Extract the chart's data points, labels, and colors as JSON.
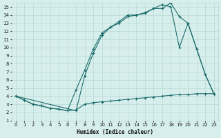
{
  "xlabel": "Humidex (Indice chaleur)",
  "background_color": "#d7efec",
  "grid_color": "#b8d8d4",
  "line_color": "#1a6b6b",
  "xlim": [
    -0.5,
    23.5
  ],
  "ylim": [
    1,
    15.5
  ],
  "xticks": [
    0,
    1,
    2,
    3,
    4,
    5,
    6,
    7,
    8,
    9,
    10,
    11,
    12,
    13,
    14,
    15,
    16,
    17,
    18,
    19,
    20,
    21,
    22,
    23
  ],
  "yticks": [
    1,
    2,
    3,
    4,
    5,
    6,
    7,
    8,
    9,
    10,
    11,
    12,
    13,
    14,
    15
  ],
  "line1_x": [
    0,
    1,
    2,
    3,
    4,
    5,
    6,
    7,
    8,
    9,
    10,
    11,
    12,
    13,
    14,
    15,
    16,
    17,
    18,
    19,
    20,
    21,
    22,
    23
  ],
  "line1_y": [
    4.0,
    3.5,
    3.0,
    2.8,
    2.5,
    2.4,
    2.2,
    2.3,
    3.0,
    3.2,
    3.3,
    3.4,
    3.5,
    3.6,
    3.7,
    3.8,
    3.9,
    4.0,
    4.1,
    4.2,
    4.2,
    4.3,
    4.3,
    4.3
  ],
  "line2_x": [
    0,
    1,
    2,
    3,
    4,
    5,
    6,
    7,
    8,
    9,
    10,
    11,
    12,
    13,
    14,
    15,
    16,
    17,
    18,
    19,
    20,
    22,
    23
  ],
  "line2_y": [
    4.0,
    3.5,
    3.0,
    2.8,
    2.5,
    2.4,
    2.2,
    4.8,
    7.2,
    9.8,
    11.8,
    12.5,
    13.2,
    14.0,
    14.0,
    14.3,
    14.8,
    15.3,
    15.0,
    10.0,
    13.0,
    6.7,
    4.3
  ],
  "line3_x": [
    0,
    7,
    8,
    9,
    10,
    11,
    12,
    13,
    14,
    15,
    16,
    17,
    18,
    19,
    20,
    21,
    22,
    23
  ],
  "line3_y": [
    4.0,
    2.2,
    6.5,
    9.3,
    11.5,
    12.5,
    13.0,
    13.8,
    14.0,
    14.2,
    14.8,
    14.8,
    15.5,
    13.8,
    13.0,
    9.8,
    6.7,
    4.3
  ]
}
